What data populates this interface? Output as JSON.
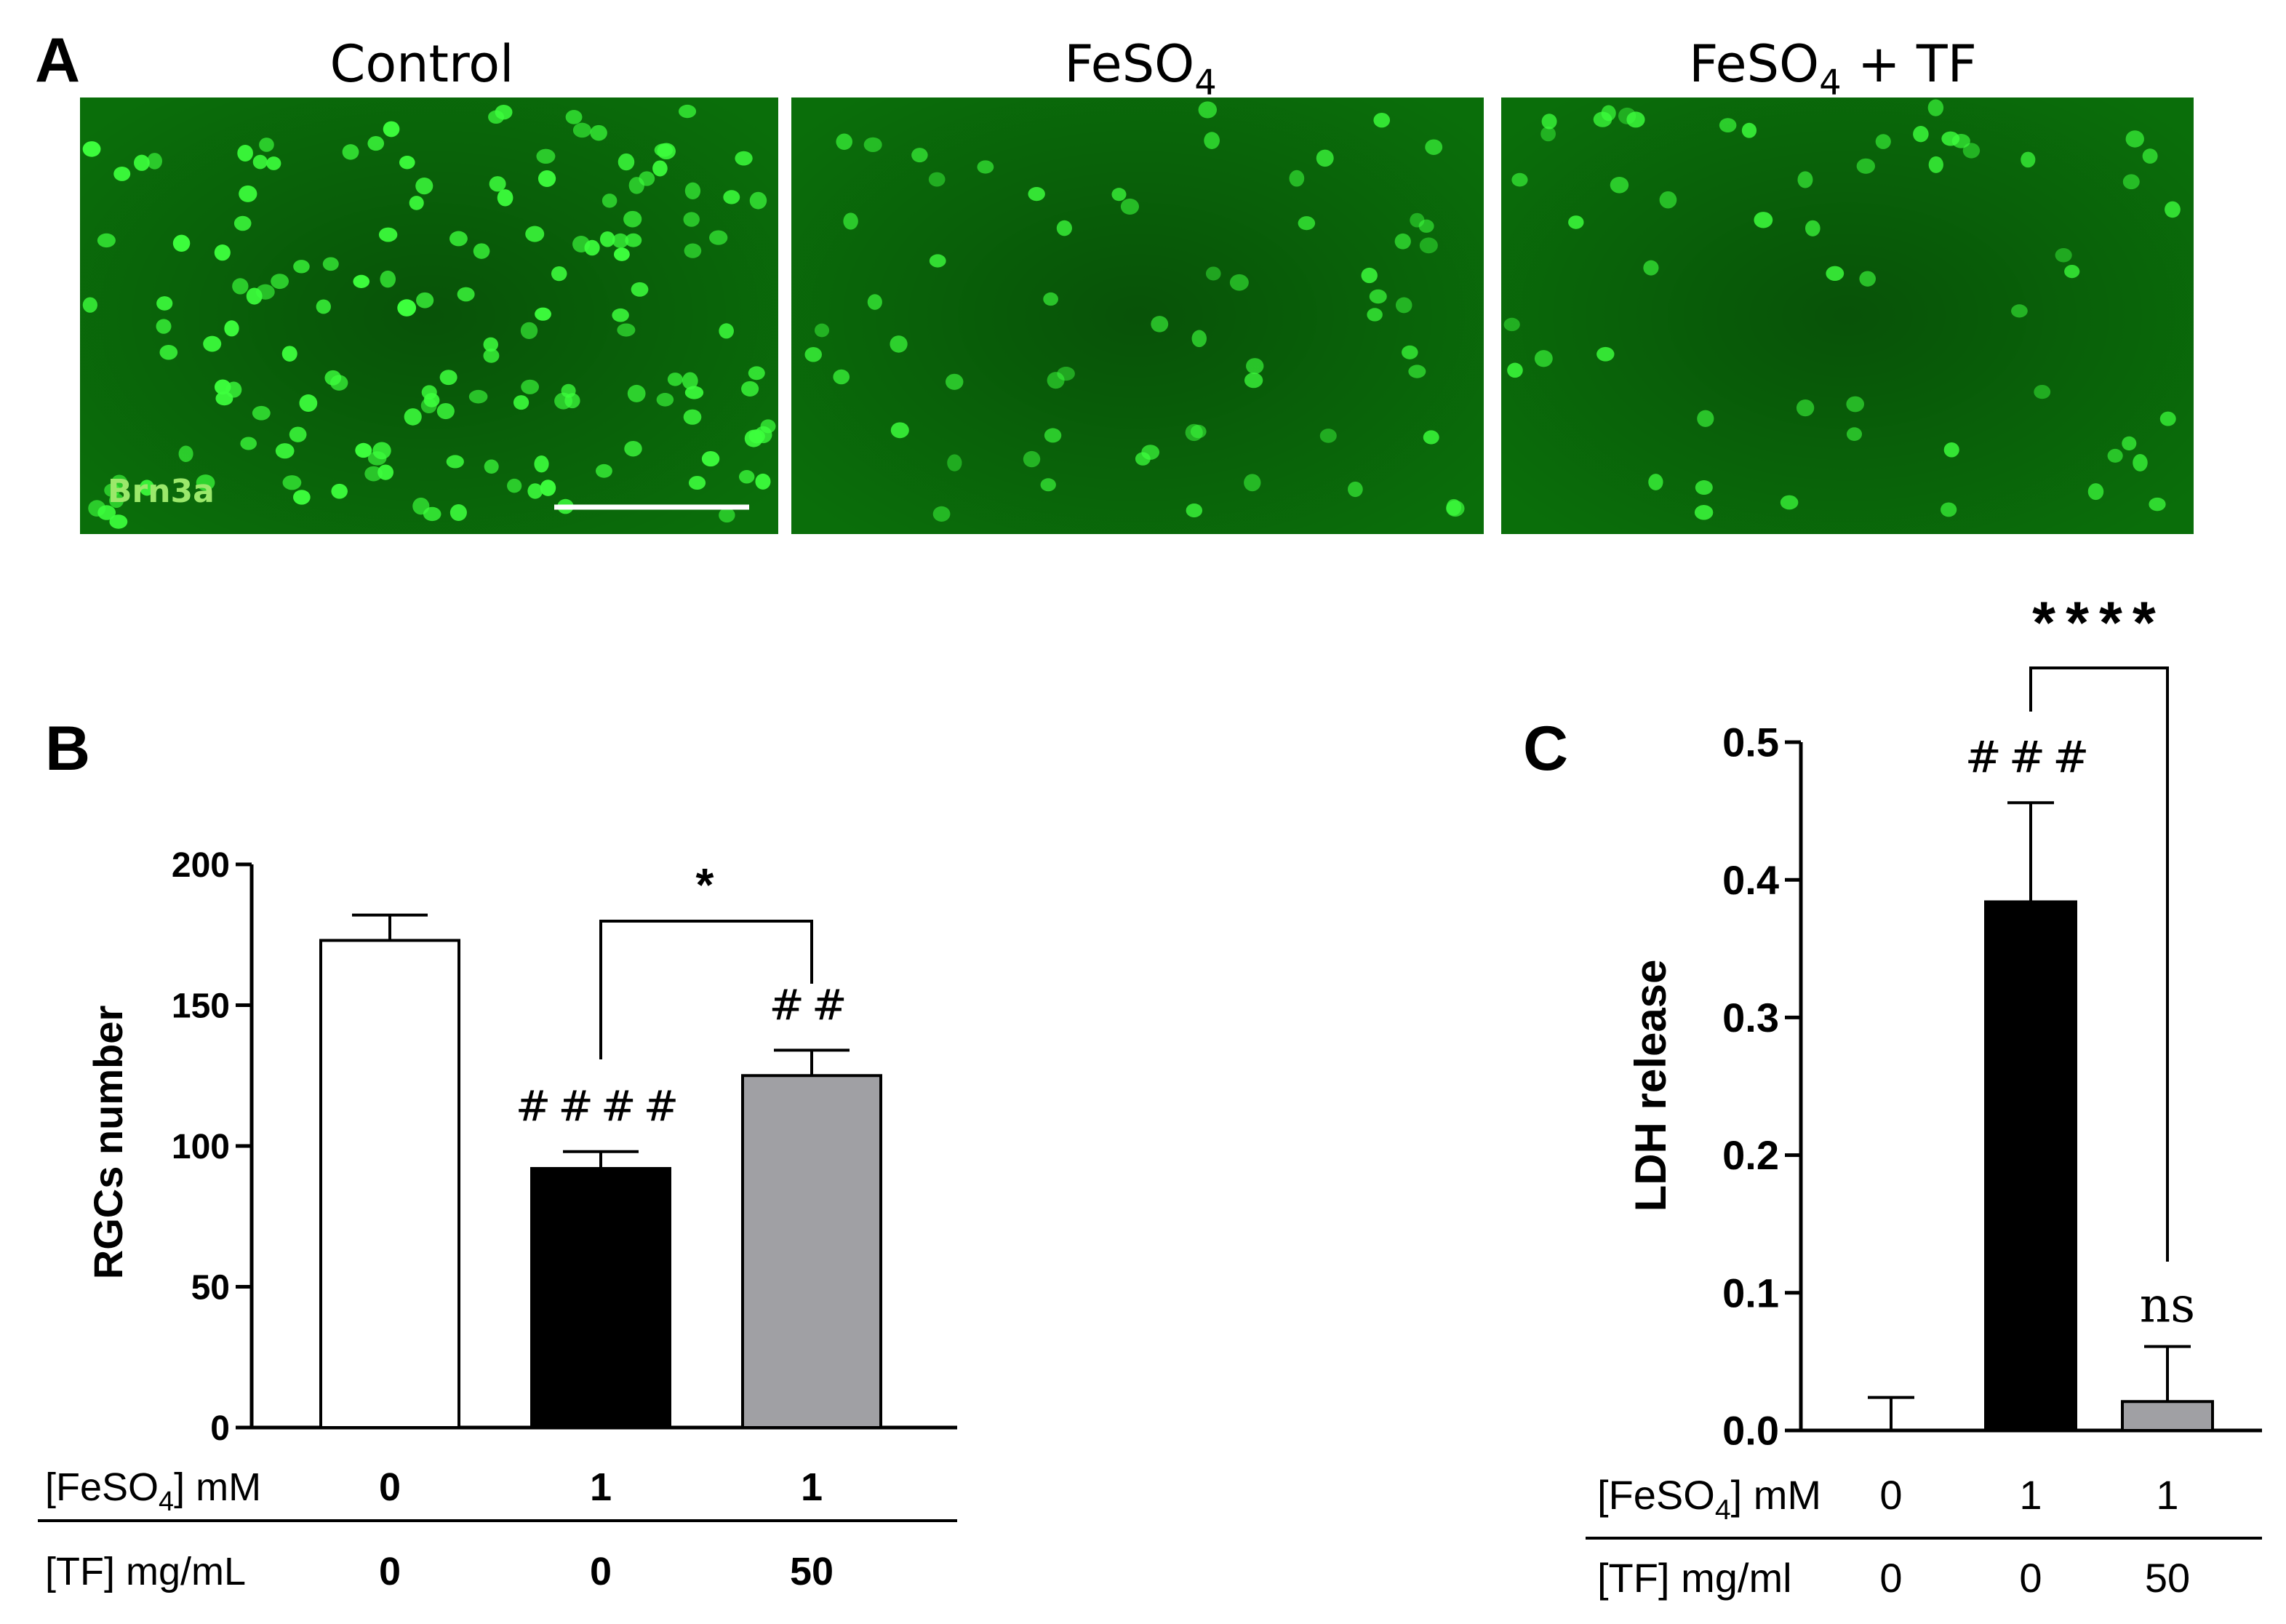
{
  "panel_a": {
    "letter": "A",
    "titles": [
      "Control",
      "FeSO",
      "FeSO"
    ],
    "title_subscripts": [
      "",
      "4",
      "4"
    ],
    "title_suffix": [
      "",
      "",
      " + TF"
    ],
    "stain_label": "Brn3a",
    "cell_counts": [
      150,
      60,
      55
    ],
    "colors": {
      "background": "#0a6e0a",
      "cell": "#3dff3d",
      "stain_text": "#9be86b"
    }
  },
  "chart_data": [
    {
      "panel": "B",
      "type": "bar",
      "ylabel": "RGCs number",
      "ylim": [
        0,
        200
      ],
      "yticks": [
        "0",
        "50",
        "100",
        "150",
        "200"
      ],
      "values": [
        173,
        92,
        125
      ],
      "errors": [
        9,
        6,
        9
      ],
      "bar_colors": [
        "#ffffff",
        "#000000",
        "#a0a0a4"
      ],
      "annotations": [
        "",
        "####",
        "##"
      ],
      "comparison": {
        "from": 1,
        "to": 2,
        "label": "*"
      },
      "condition_rows": [
        {
          "label": "[FeSO",
          "sub": "4",
          "suffix": "] mM",
          "values": [
            "0",
            "1",
            "1"
          ]
        },
        {
          "label": "[TF] mg/mL",
          "sub": "",
          "suffix": "",
          "values": [
            "0",
            "0",
            "50"
          ]
        }
      ]
    },
    {
      "panel": "C",
      "type": "bar",
      "ylabel": "LDH release",
      "ylim": [
        0,
        0.5
      ],
      "yticks": [
        "0.0",
        "0.1",
        "0.2",
        "0.3",
        "0.4",
        "0.5"
      ],
      "values": [
        0,
        0.384,
        0.021
      ],
      "errors": [
        0.024,
        0.072,
        0.04
      ],
      "bar_colors": [
        "#ffffff",
        "#000000",
        "#a0a0a4"
      ],
      "annotations": [
        "",
        "###",
        "ns"
      ],
      "comparison": {
        "from": 1,
        "to": 2,
        "label": "****"
      },
      "condition_rows": [
        {
          "label": "[FeSO",
          "sub": "4",
          "suffix": "] mM",
          "values": [
            "0",
            "1",
            "1"
          ]
        },
        {
          "label": "[TF] mg/ml",
          "sub": "",
          "suffix": "",
          "values": [
            "0",
            "0",
            "50"
          ]
        }
      ]
    }
  ]
}
